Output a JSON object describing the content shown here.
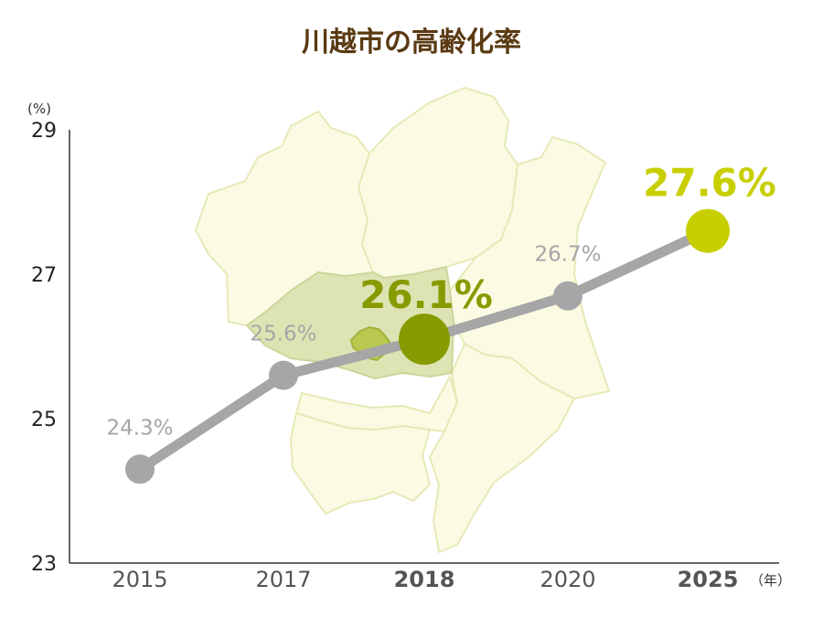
{
  "chart_data": {
    "type": "line",
    "title": "川越市の高齢化率",
    "y_unit": "(%)",
    "x_unit": "（年）",
    "ylim": [
      23,
      29
    ],
    "yticks": [
      "23",
      "25",
      "27",
      "29"
    ],
    "categories": [
      "2015",
      "2017",
      "2018",
      "2020",
      "2025"
    ],
    "values": [
      24.3,
      25.6,
      26.1,
      26.7,
      27.6
    ],
    "labels": [
      "24.3%",
      "25.6%",
      "26.1%",
      "26.7%",
      "27.6%"
    ],
    "highlights": {
      "2018": {
        "color": "#879b00",
        "style": "current"
      },
      "2025": {
        "color": "#c8cf00",
        "style": "forecast"
      }
    },
    "line_color": "#a6a6a6",
    "map_background": "kanto-region-map"
  }
}
